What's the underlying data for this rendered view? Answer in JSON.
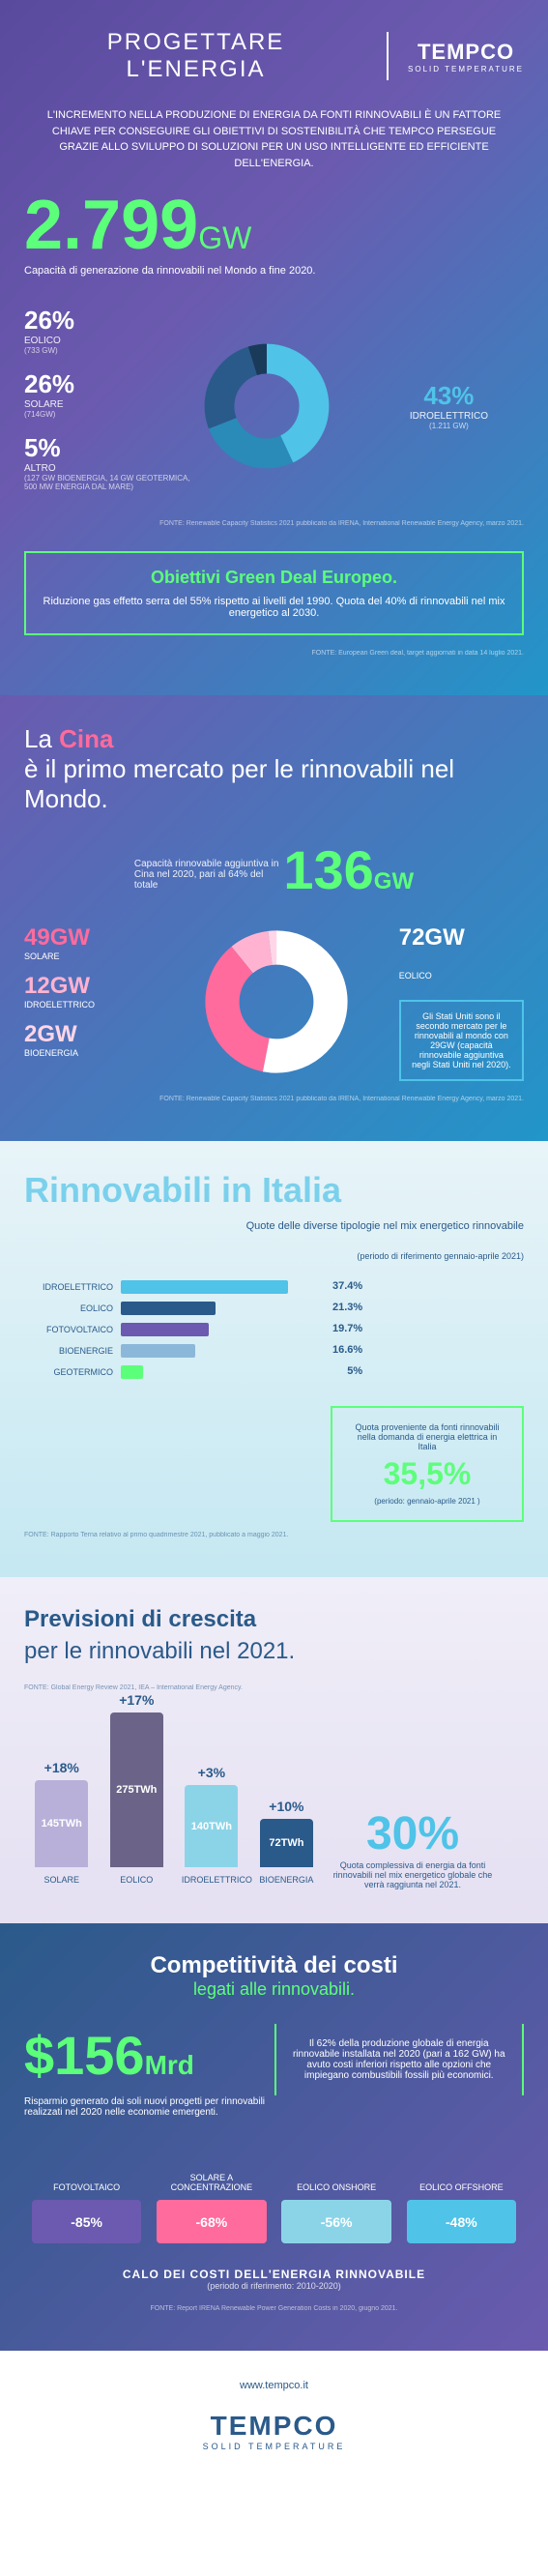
{
  "header": {
    "title1": "PROGETTARE",
    "title2": "L'ENERGIA",
    "brand": "TEMPCO",
    "tagline": "SOLID TEMPERATURE"
  },
  "intro": "L'INCREMENTO NELLA PRODUZIONE DI ENERGIA DA FONTI RINNOVABILI È UN FATTORE CHIAVE PER CONSEGUIRE GLI OBIETTIVI DI SOSTENIBILITÀ CHE TEMPCO PERSEGUE GRAZIE ALLO SVILUPPO DI SOLUZIONI PER UN USO INTELLIGENTE ED EFFICIENTE DELL'ENERGIA.",
  "world": {
    "value": "2.799",
    "unit": "GW",
    "sub": "Capacità di generazione da rinnovabili nel Mondo a fine 2020.",
    "donut": {
      "colors": [
        "#4fc3e8",
        "#2a8ab8",
        "#2a5a8a",
        "#1a3a5a"
      ],
      "values": [
        43,
        26,
        26,
        5
      ]
    },
    "items": [
      {
        "pct": "26%",
        "label": "EOLICO",
        "sub": "(733 GW)",
        "color": "#ffffff"
      },
      {
        "pct": "26%",
        "label": "SOLARE",
        "sub": "(714GW)",
        "color": "#ffffff"
      },
      {
        "pct": "5%",
        "label": "ALTRO",
        "sub": "(127 GW BIOENERGIA, 14 GW GEOTERMICA, 500 MW ENERGIA DAL MARE)",
        "color": "#ffffff"
      }
    ],
    "right": {
      "pct": "43%",
      "label": "IDROELETTRICO",
      "sub": "(1.211 GW)",
      "color": "#4fc3e8"
    },
    "source": "FONTE: Renewable Capacity Statistics 2021 pubblicato da IRENA, International Renewable Energy Agency, marzo 2021."
  },
  "greenbox": {
    "title": "Obiettivi Green Deal Europeo.",
    "text": "Riduzione gas effetto serra del 55% rispetto ai livelli del 1990. Quota del 40% di rinnovabili nel mix energetico al 2030.",
    "source": "FONTE: European Green deal, target aggiornati in data 14 luglio 2021."
  },
  "cina": {
    "title_pre": "La ",
    "title_hl": "Cina",
    "title_post": " è il primo mercato per le rinnovabili nel Mondo.",
    "desc": "Capacità rinnovabile aggiuntiva in Cina nel 2020, pari al 64% del totale",
    "big": "136",
    "unit": "GW",
    "donut": {
      "colors": [
        "#ffffff",
        "#ff6b9d",
        "#ffb3d1",
        "#ffd6e8"
      ],
      "values": [
        53,
        36,
        9,
        2
      ]
    },
    "left": [
      {
        "v": "49GW",
        "l": "SOLARE",
        "c": "#ff6b9d"
      },
      {
        "v": "12GW",
        "l": "IDROELETTRICO",
        "c": "#ffb3d1"
      },
      {
        "v": "2GW",
        "l": "BIOENERGIA",
        "c": "#ffd6e8"
      }
    ],
    "right": {
      "v": "72GW",
      "l": "EOLICO",
      "c": "#ffffff"
    },
    "usa": "Gli Stati Uniti sono il secondo mercato per le rinnovabili al mondo con 29GW (capacità rinnovabile aggiuntiva negli Stati Uniti nel 2020).",
    "source": "FONTE: Renewable Capacity Statistics 2021 pubblicato da IRENA, International Renewable Energy Agency, marzo 2021."
  },
  "italia": {
    "title": "Rinnovabili in Italia",
    "sub": "Quote delle diverse tipologie nel mix energetico rinnovabile",
    "sub2": "(periodo di riferimento gennaio-aprile 2021)",
    "bars": [
      {
        "label": "IDROELETTRICO",
        "pct": 37.4,
        "color": "#4fc3e8"
      },
      {
        "label": "EOLICO",
        "pct": 21.3,
        "color": "#2a5a8a"
      },
      {
        "label": "FOTOVOLTAICO",
        "pct": 19.7,
        "color": "#6b5aaf"
      },
      {
        "label": "BIOENERGIE",
        "pct": 16.6,
        "color": "#8bb8d8"
      },
      {
        "label": "GEOTERMICO",
        "pct": 5,
        "color": "#5cff7a"
      }
    ],
    "quota": {
      "text": "Quota proveniente da fonti rinnovabili nella domanda di energia elettrica in Italia",
      "val": "35,5%",
      "per": "(periodo: gennaio-aprile 2021 )"
    },
    "source": "FONTE: Rapporto Terna relativo al primo quadrimestre 2021, pubblicato a maggio 2021."
  },
  "previsioni": {
    "title1": "Previsioni di crescita",
    "title2": "per le rinnovabili nel 2021.",
    "source_top": "FONTE: Global Energy Review 2021, IEA – International Energy Agency.",
    "bars": [
      {
        "pct": "+18%",
        "val": "145TWh",
        "h": 90,
        "color": "#b8b0d8",
        "name": "SOLARE"
      },
      {
        "pct": "+17%",
        "val": "275TWh",
        "h": 160,
        "color": "#6b6488",
        "name": "EOLICO"
      },
      {
        "pct": "+3%",
        "val": "140TWh",
        "h": 85,
        "color": "#8bd4e8",
        "name": "IDROELETTRICO"
      },
      {
        "pct": "+10%",
        "val": "72TWh",
        "h": 50,
        "color": "#2a5a8a",
        "name": "BIOENERGIA"
      }
    ],
    "thirty": {
      "val": "30%",
      "text": "Quota complessiva di energia da fonti rinnovabili nel mix energetico globale che verrà raggiunta nel 2021."
    }
  },
  "costi": {
    "title": "Competitività dei costi",
    "sub": "legati alle rinnovabili.",
    "big": "$156",
    "unit": "Mrd",
    "desc": "Risparmio generato dai soli nuovi progetti per rinnovabili realizzati nel 2020 nelle economie emergenti.",
    "box": "Il 62% della produzione globale di energia rinnovabile installata nel 2020 (pari a 162 GW) ha avuto costi inferiori rispetto alle opzioni che impiegano combustibili fossili più economici.",
    "bars": [
      {
        "label": "FOTOVOLTAICO",
        "val": "-85%",
        "color": "#6b5aaf"
      },
      {
        "label": "SOLARE A CONCENTRAZIONE",
        "val": "-68%",
        "color": "#ff6b9d"
      },
      {
        "label": "EOLICO ONSHORE",
        "val": "-56%",
        "color": "#8bd4e8"
      },
      {
        "label": "EOLICO OFFSHORE",
        "val": "-48%",
        "color": "#4fc3e8"
      }
    ],
    "btitle": "CALO DEI COSTI DELL'ENERGIA RINNOVABILE",
    "bper": "(periodo di riferimento: 2010-2020)",
    "source": "FONTE: Report IRENA Renewable Power Generation Costs in 2020, giugno 2021."
  },
  "footer": {
    "url": "www.tempco.it",
    "brand": "TEMPCO",
    "tagline": "SOLID TEMPERATURE"
  }
}
